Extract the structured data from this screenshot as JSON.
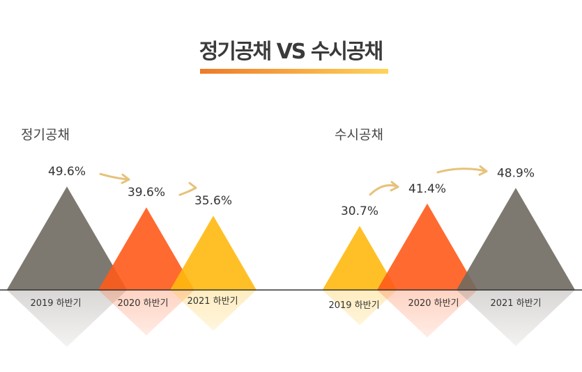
{
  "title": "정기공채 VS 수시공채",
  "colors": {
    "gray": "#6f6a60",
    "orange": "#ff5a1a",
    "yellow": "#ffb90f",
    "arrow": "#e6c27a",
    "underline_start": "#ee7a28",
    "underline_end": "#ffd45a"
  },
  "chart_data": [
    {
      "type": "triangle-bar",
      "title": "정기공채",
      "categories": [
        "2019 하반기",
        "2020 하반기",
        "2021 하반기"
      ],
      "values": [
        49.6,
        39.6,
        35.6
      ],
      "labels": [
        "49.6%",
        "39.6%",
        "35.6%"
      ],
      "colors": [
        "#6f6a60",
        "#ff5a1a",
        "#ffb90f"
      ]
    },
    {
      "type": "triangle-bar",
      "title": "수시공채",
      "categories": [
        "2019 하반기",
        "2020 하반기",
        "2021 하반기"
      ],
      "values": [
        30.7,
        41.4,
        48.9
      ],
      "labels": [
        "30.7%",
        "41.4%",
        "48.9%"
      ],
      "colors": [
        "#ffb90f",
        "#ff5a1a",
        "#6f6a60"
      ]
    }
  ]
}
